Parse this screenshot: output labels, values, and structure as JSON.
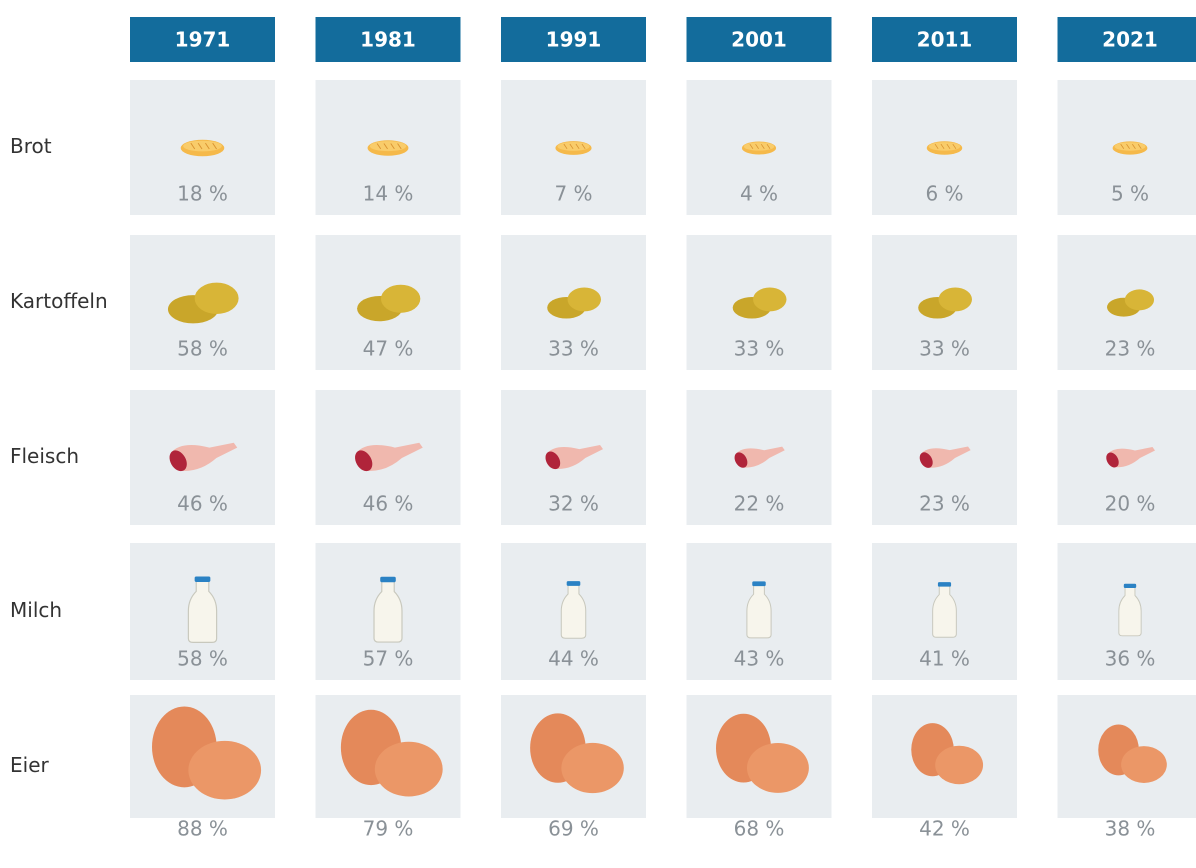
{
  "columns": [
    "1971",
    "1981",
    "1991",
    "2001",
    "2011",
    "2021"
  ],
  "rows": [
    {
      "label": "Brot",
      "cells": [
        "18 %",
        "14 %",
        "7 %",
        "4 %",
        "6 %",
        "5 %"
      ]
    },
    {
      "label": "Kartoffeln",
      "cells": [
        "58 %",
        "47 %",
        "33 %",
        "33 %",
        "33 %",
        "23 %"
      ]
    },
    {
      "label": "Fleisch",
      "cells": [
        "46 %",
        "46 %",
        "32 %",
        "22 %",
        "23 %",
        "20 %"
      ]
    },
    {
      "label": "Milch",
      "cells": [
        "58 %",
        "57 %",
        "44 %",
        "43 %",
        "41 %",
        "36 %"
      ]
    },
    {
      "label": "Eier",
      "cells": [
        "88 %",
        "79 %",
        "69 %",
        "68 %",
        "42 %",
        "38 %"
      ]
    }
  ]
}
